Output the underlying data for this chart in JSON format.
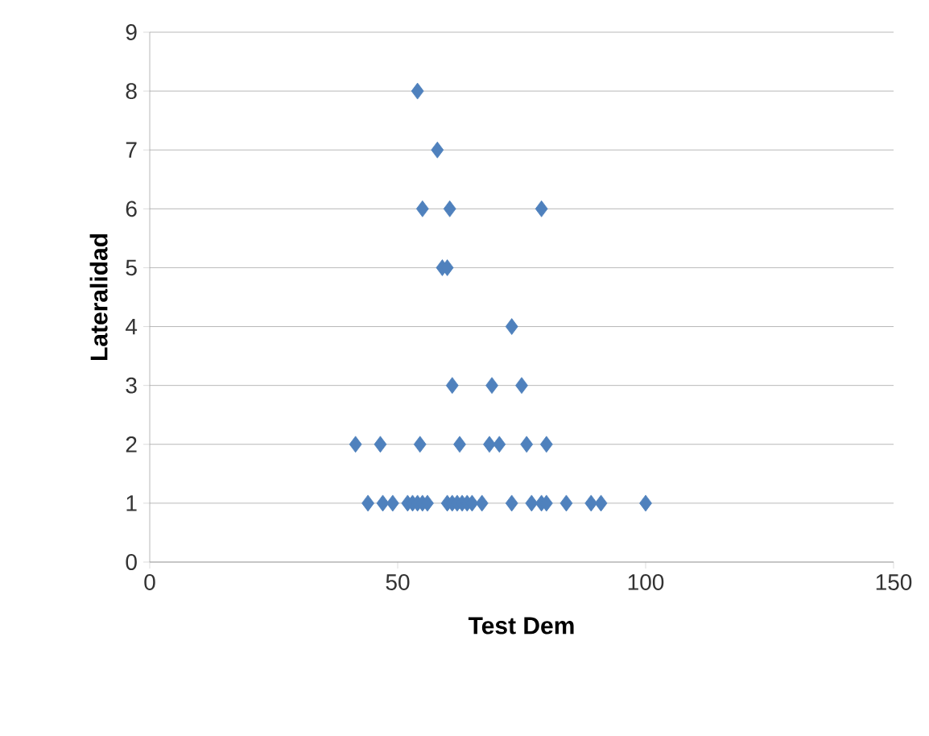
{
  "chart_data": {
    "type": "scatter",
    "xlabel": "Test Dem",
    "ylabel": "Lateralidad",
    "color": "#4f81bd",
    "marker": "diamond",
    "grid": "y",
    "x": [
      54,
      58,
      55,
      60.5,
      79,
      59,
      60,
      73,
      61,
      69,
      75,
      41.5,
      46.5,
      54.5,
      62.5,
      68.5,
      70.5,
      76,
      80,
      44,
      47,
      49,
      52,
      53,
      54,
      55,
      56,
      60,
      61,
      62,
      63,
      64,
      65,
      67,
      73,
      77,
      79,
      80,
      84,
      89,
      91,
      100
    ],
    "values": [
      8,
      7,
      6,
      6,
      6,
      5,
      5,
      4,
      3,
      3,
      3,
      2,
      2,
      2,
      2,
      2,
      2,
      2,
      2,
      1,
      1,
      1,
      1,
      1,
      1,
      1,
      1,
      1,
      1,
      1,
      1,
      1,
      1,
      1,
      1,
      1,
      1,
      1,
      1,
      1,
      1,
      1
    ],
    "xlim": [
      0,
      150
    ],
    "xticks": [
      0,
      50,
      100,
      150
    ],
    "ylim": [
      0,
      9
    ],
    "yticks": [
      0,
      1,
      2,
      3,
      4,
      5,
      6,
      7,
      8,
      9
    ]
  }
}
